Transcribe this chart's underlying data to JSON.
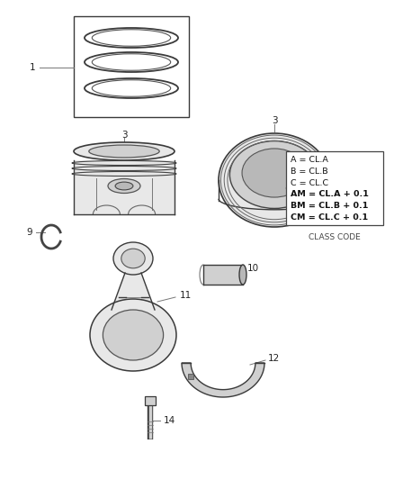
{
  "bg_color": "#ffffff",
  "line_color": "#3a3a3a",
  "fill_light": "#e8e8e8",
  "fill_mid": "#d0d0d0",
  "fill_dark": "#b8b8b8",
  "class_code_lines": [
    [
      "A = CL.A",
      false
    ],
    [
      "B = CL.B",
      false
    ],
    [
      "C = CL.C",
      false
    ],
    [
      "AM = CL.A + 0.1",
      true
    ],
    [
      "BM = CL.B + 0.1",
      true
    ],
    [
      "CM = CL.C + 0.1",
      true
    ]
  ],
  "class_code_label": "CLASS CODE",
  "label_fontsize": 7.5,
  "class_fontsize": 6.8
}
